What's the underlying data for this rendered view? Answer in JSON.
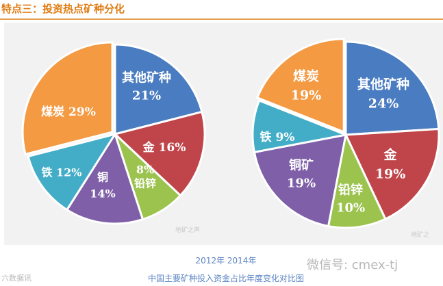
{
  "header": {
    "title": "特点三：投资热点矿种分化"
  },
  "chart_data": [
    {
      "type": "pie",
      "title": "2012年",
      "slices": [
        {
          "name": "其他矿种",
          "value": 21,
          "color": "#4a7cc1"
        },
        {
          "name": "金",
          "value": 16,
          "color": "#c0454a"
        },
        {
          "name": "铅锌",
          "value": 8,
          "color": "#9bc34e"
        },
        {
          "name": "铜",
          "value": 14,
          "color": "#7e5fa8"
        },
        {
          "name": "铁",
          "value": 12,
          "color": "#43adc7"
        },
        {
          "name": "煤炭",
          "value": 29,
          "color": "#f39a43"
        }
      ],
      "labels": [
        {
          "lines": [
            "其他矿种",
            "21%"
          ]
        },
        {
          "lines": [
            "金 16%"
          ]
        },
        {
          "lines": [
            "8%",
            "铅锌"
          ]
        },
        {
          "lines": [
            "铜",
            "14%"
          ]
        },
        {
          "lines": [
            "铁 12%"
          ]
        },
        {
          "lines": [
            "煤炭 29%"
          ]
        }
      ],
      "watermark": "地矿之声"
    },
    {
      "type": "pie",
      "title": "2014年",
      "slices": [
        {
          "name": "其他矿种",
          "value": 24,
          "color": "#4a7cc1"
        },
        {
          "name": "金",
          "value": 19,
          "color": "#c0454a"
        },
        {
          "name": "铅锌",
          "value": 10,
          "color": "#9bc34e"
        },
        {
          "name": "铜矿",
          "value": 19,
          "color": "#7e5fa8"
        },
        {
          "name": "铁",
          "value": 9,
          "color": "#43adc7"
        },
        {
          "name": "煤炭",
          "value": 19,
          "color": "#f39a43"
        }
      ],
      "labels": [
        {
          "lines": [
            "其他矿种",
            "24%"
          ]
        },
        {
          "lines": [
            "金",
            "19%"
          ]
        },
        {
          "lines": [
            "铅锌",
            "10%"
          ]
        },
        {
          "lines": [
            "铜矿",
            "19%"
          ]
        },
        {
          "lines": [
            "铁 9%"
          ]
        },
        {
          "lines": [
            "煤炭",
            "19%"
          ]
        }
      ],
      "watermark": "地矿之"
    }
  ],
  "caption": {
    "years": "2012年 2014年",
    "subtitle": "中国主要矿种投入资金占比年度变化对比图"
  },
  "footer": {
    "source": "六数据讯",
    "wechat": "微信号: cmex-tj"
  }
}
